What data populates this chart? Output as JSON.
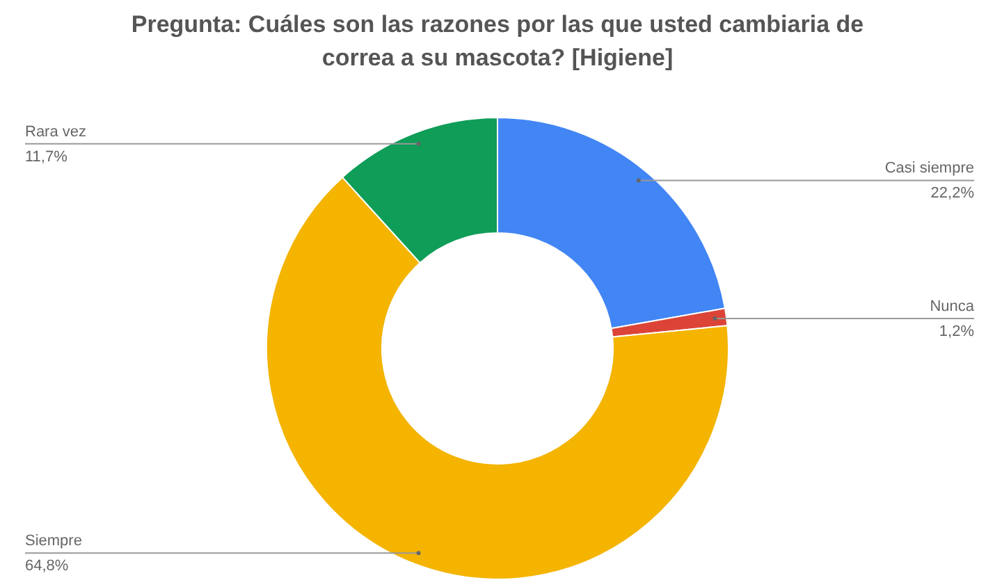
{
  "chart_data": {
    "type": "donut",
    "title": "Pregunta: Cuáles son las razones por las que usted cambiaria de correa a su mascota?  [Higiene]",
    "categories": [
      "Casi siempre",
      "Nunca",
      "Siempre",
      "Rara vez"
    ],
    "values": [
      22.2,
      1.2,
      64.8,
      11.7
    ],
    "colors": [
      "#4285f4",
      "#db4437",
      "#f4b400",
      "#0f9d58"
    ],
    "value_labels": [
      "22,2%",
      "1,2%",
      "64,8%",
      "11,7%"
    ]
  }
}
